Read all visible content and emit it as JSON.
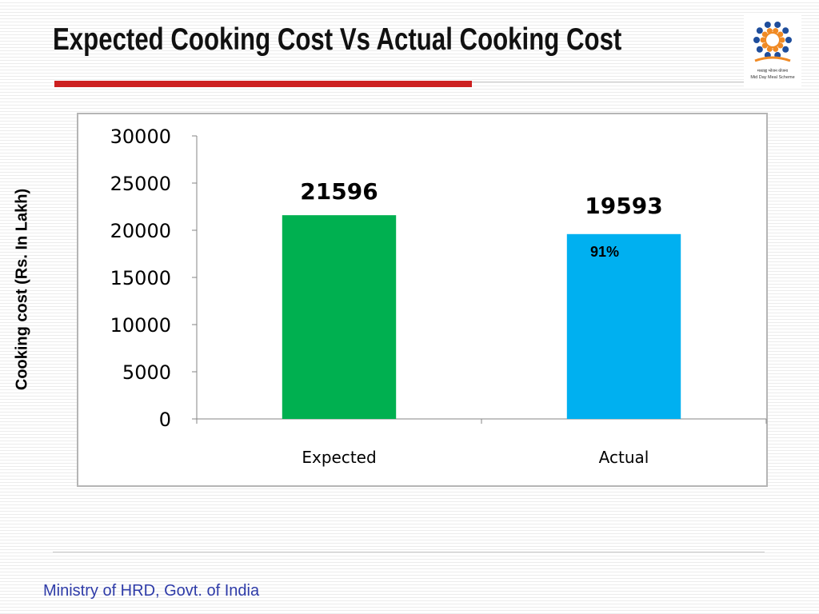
{
  "slide": {
    "title": "Expected Cooking Cost Vs Actual Cooking Cost",
    "footer": "Ministry of HRD, Govt. of India"
  },
  "logo": {
    "caption_hindi": "मध्याह्न भोजन योजना",
    "caption_english": "Mid Day Meal Scheme",
    "icon": "mid-day-meal-emblem"
  },
  "colors": {
    "accent_rule": "#cc1f1f",
    "footer_text": "#2e3ba8"
  },
  "chart_data": {
    "type": "bar",
    "ylabel": "Cooking cost (Rs. In Lakh)",
    "ylim": [
      0,
      30000
    ],
    "yticks": [
      0,
      5000,
      10000,
      15000,
      20000,
      25000,
      30000
    ],
    "categories": [
      "Expected",
      "Actual"
    ],
    "values": [
      21596,
      19593
    ],
    "bar_colors": [
      "#00b050",
      "#00b0f0"
    ],
    "data_labels": [
      "21596",
      "19593"
    ],
    "annotations": [
      {
        "category": "Actual",
        "text": "91%"
      }
    ],
    "grid": false,
    "legend": "none"
  }
}
